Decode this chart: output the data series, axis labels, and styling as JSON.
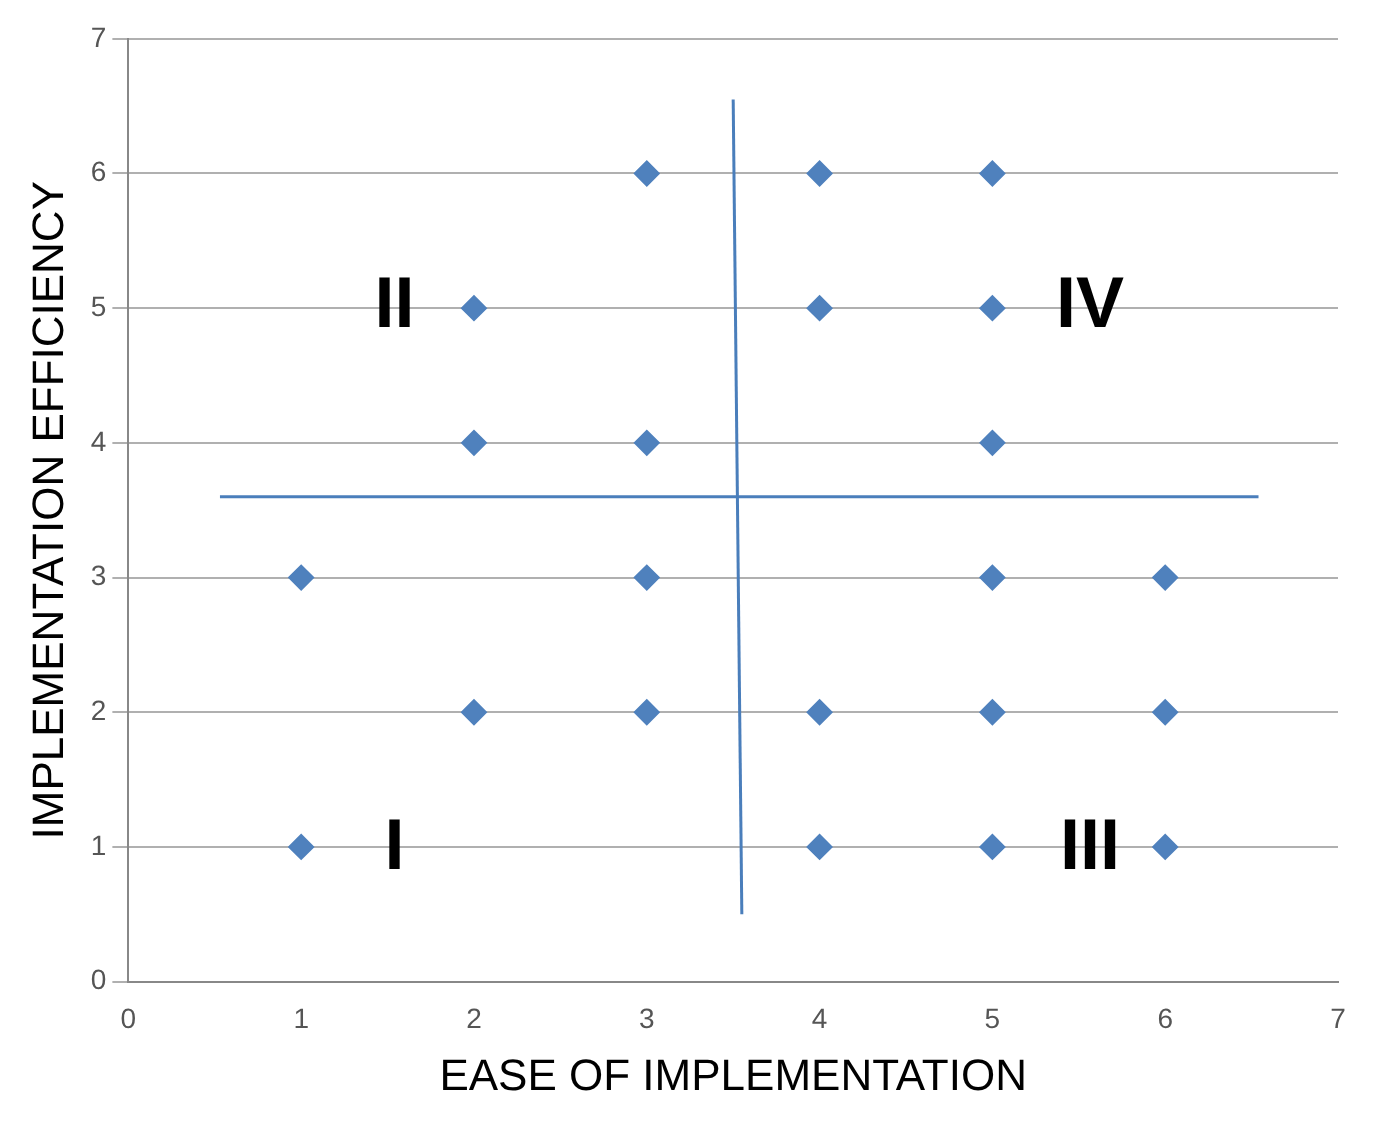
{
  "chart_data": {
    "type": "scatter",
    "xlabel": "EASE OF IMPLEMENTATION",
    "ylabel": "IMPLEMENTATION EFFICIENCY",
    "xlim": [
      0,
      7
    ],
    "ylim": [
      0,
      7
    ],
    "xticks": [
      0,
      1,
      2,
      3,
      4,
      5,
      6,
      7
    ],
    "yticks": [
      0,
      1,
      2,
      3,
      4,
      5,
      6,
      7
    ],
    "grid": "y",
    "marker": "diamond",
    "series": [
      {
        "type": "scatter",
        "color": "#4f81bd",
        "x": [
          3,
          4,
          5,
          2,
          4,
          5,
          2,
          3,
          5,
          1,
          3,
          5,
          6,
          2,
          3,
          4,
          5,
          6,
          1,
          4,
          5,
          6
        ],
        "values": [
          6,
          6,
          6,
          5,
          5,
          5,
          4,
          4,
          4,
          3,
          3,
          3,
          3,
          2,
          2,
          2,
          2,
          2,
          1,
          1,
          1,
          1
        ]
      },
      {
        "type": "line",
        "color": "#4a7ebb",
        "marker": "none",
        "x": [
          3.5,
          3.55
        ],
        "values": [
          6.55,
          0.5
        ]
      },
      {
        "type": "line",
        "color": "#4a7ebb",
        "marker": "none",
        "x": [
          0.53,
          6.54
        ],
        "values": [
          3.6,
          3.6
        ]
      }
    ],
    "annotations": [
      "I",
      "II",
      "III",
      "IV"
    ]
  }
}
